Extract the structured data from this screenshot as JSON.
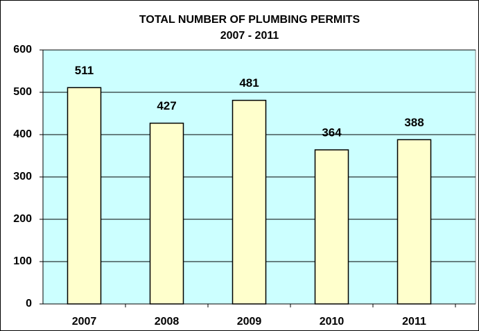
{
  "chart_data": {
    "type": "bar",
    "title": "TOTAL NUMBER OF PLUMBING PERMITS",
    "subtitle": "2007 - 2011",
    "categories": [
      "2007",
      "2008",
      "2009",
      "2010",
      "2011"
    ],
    "values": [
      511,
      427,
      481,
      364,
      388
    ],
    "color": "#ffffcc",
    "ylim": [
      0,
      600
    ],
    "yticks": [
      0,
      100,
      200,
      300,
      400,
      500,
      600
    ],
    "grid": true,
    "data_labels": true
  }
}
